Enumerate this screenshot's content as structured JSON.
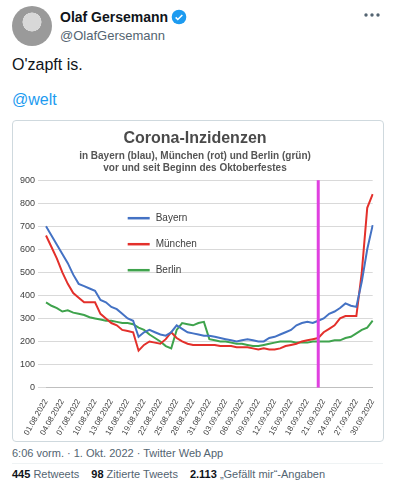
{
  "tweet": {
    "name": "Olaf Gersemann",
    "handle": "@OlafGersemann",
    "text": "O'zapft is.",
    "mention": "@welt",
    "timestamp": "6:06 vorm. · 1. Okt. 2022 · Twitter Web App",
    "stats": [
      {
        "count": "445",
        "label": "Retweets"
      },
      {
        "count": "98",
        "label": "Zitierte Tweets"
      },
      {
        "count": "2.113",
        "label": "„Gefällt mir“-Angaben"
      }
    ]
  },
  "chart_data": {
    "type": "line",
    "title": "Corona-Inzidenzen",
    "subtitle": [
      "in Bayern (blau), München (rot) und Berlin (grün)",
      "vor und seit Beginn des Oktoberfestes"
    ],
    "categories": [
      "01.08.2022",
      null,
      null,
      "04.08.2022",
      null,
      null,
      "07.08.2022",
      null,
      null,
      "10.08.2022",
      null,
      null,
      "13.08.2022",
      null,
      null,
      "16.08.2022",
      null,
      null,
      "19.08.2022",
      null,
      null,
      "22.08.2022",
      null,
      null,
      "25.08.2022",
      null,
      null,
      "28.08.2022",
      null,
      null,
      "31.08.2022",
      null,
      null,
      "03.09.2022",
      null,
      null,
      "06.09.2022",
      null,
      null,
      "09.09.2022",
      null,
      null,
      "12.09.2022",
      null,
      null,
      "15.09.2022",
      null,
      null,
      "18.09.2022",
      null,
      null,
      "21.09.2022",
      null,
      null,
      "24.09.2022",
      null,
      null,
      "27.09.2022",
      null,
      null,
      "30.09.2022"
    ],
    "series": [
      {
        "name": "Bayern",
        "color": "#4472c4",
        "values": [
          700,
          660,
          620,
          580,
          540,
          490,
          450,
          440,
          430,
          420,
          380,
          370,
          350,
          340,
          320,
          300,
          290,
          220,
          240,
          250,
          240,
          230,
          225,
          240,
          270,
          255,
          240,
          235,
          230,
          225,
          225,
          220,
          215,
          210,
          205,
          200,
          205,
          210,
          205,
          200,
          200,
          215,
          220,
          230,
          240,
          250,
          270,
          280,
          285,
          280,
          290,
          300,
          320,
          330,
          345,
          365,
          355,
          350,
          460,
          600,
          705
        ]
      },
      {
        "name": "München",
        "color": "#e3302b",
        "values": [
          660,
          610,
          560,
          500,
          450,
          410,
          390,
          370,
          370,
          370,
          320,
          300,
          280,
          270,
          250,
          245,
          240,
          160,
          185,
          200,
          195,
          190,
          210,
          240,
          215,
          200,
          190,
          185,
          185,
          185,
          185,
          185,
          180,
          180,
          180,
          175,
          175,
          175,
          170,
          165,
          170,
          165,
          165,
          170,
          180,
          185,
          190,
          200,
          205,
          210,
          215,
          240,
          255,
          270,
          300,
          310,
          310,
          310,
          500,
          780,
          840
        ]
      },
      {
        "name": "Berlin",
        "color": "#3fa34d",
        "values": [
          370,
          355,
          345,
          330,
          335,
          325,
          320,
          315,
          305,
          300,
          295,
          290,
          290,
          285,
          280,
          280,
          275,
          260,
          250,
          230,
          215,
          200,
          180,
          170,
          250,
          280,
          275,
          270,
          280,
          285,
          210,
          205,
          200,
          200,
          195,
          190,
          190,
          185,
          180,
          180,
          185,
          190,
          195,
          200,
          200,
          200,
          195,
          195,
          195,
          200,
          200,
          200,
          200,
          205,
          205,
          215,
          220,
          235,
          250,
          260,
          290
        ]
      }
    ],
    "ylim": [
      0,
      900
    ],
    "yticks": [
      0,
      100,
      200,
      300,
      400,
      500,
      600,
      700,
      800,
      900
    ],
    "grid": true,
    "legend": "upper left",
    "marker_line": {
      "index": 50,
      "color": "#e040e0"
    }
  }
}
